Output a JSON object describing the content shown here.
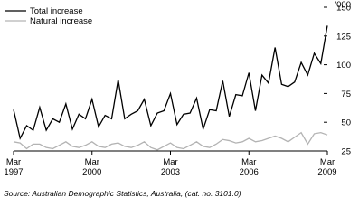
{
  "chart_data": {
    "type": "line",
    "unit_label": "'000",
    "source": "Source: Australian Demographic Statistics, Australia, (cat. no. 3101.0)",
    "categories": [
      "Mar 1997",
      null,
      null,
      null,
      null,
      null,
      null,
      null,
      null,
      null,
      null,
      null,
      "Mar 2000",
      null,
      null,
      null,
      null,
      null,
      null,
      null,
      null,
      null,
      null,
      null,
      "Mar 2003",
      null,
      null,
      null,
      null,
      null,
      null,
      null,
      null,
      null,
      null,
      null,
      "Mar 2006",
      null,
      null,
      null,
      null,
      null,
      null,
      null,
      null,
      null,
      null,
      null,
      "Mar 2009"
    ],
    "series": [
      {
        "name": "Total increase",
        "color": "#000000",
        "values": [
          61,
          36,
          47,
          43,
          63,
          43,
          53,
          50,
          66,
          44,
          57,
          53,
          70,
          46,
          56,
          53,
          87,
          53,
          57,
          60,
          70,
          47,
          58,
          60,
          75,
          48,
          57,
          58,
          71,
          44,
          61,
          60,
          86,
          55,
          74,
          73,
          93,
          60,
          91,
          84,
          115,
          83,
          81,
          85,
          102,
          91,
          110,
          101,
          134
        ]
      },
      {
        "name": "Natural increase",
        "color": "#b3b3b3",
        "values": [
          33,
          32,
          27,
          31,
          31,
          28,
          27,
          30,
          33,
          29,
          28,
          30,
          33,
          29,
          28,
          31,
          32,
          29,
          28,
          30,
          33,
          28,
          26,
          29,
          32,
          28,
          27,
          30,
          33,
          29,
          28,
          31,
          35,
          34,
          32,
          33,
          36,
          33,
          34,
          36,
          38,
          36,
          33,
          37,
          41,
          31,
          40,
          41,
          39
        ]
      }
    ],
    "ylim": [
      25,
      150
    ],
    "yticks": [
      25,
      50,
      75,
      100,
      125,
      150
    ]
  }
}
